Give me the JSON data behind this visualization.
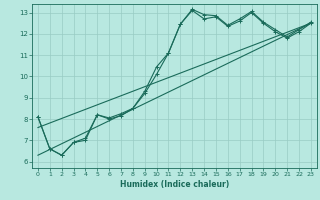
{
  "xlabel": "Humidex (Indice chaleur)",
  "ylabel": "",
  "bg_color": "#b8e8e0",
  "line_color": "#1a6b5a",
  "grid_color": "#99ccc4",
  "xlim": [
    -0.5,
    23.5
  ],
  "ylim": [
    5.7,
    13.4
  ],
  "xticks": [
    0,
    1,
    2,
    3,
    4,
    5,
    6,
    7,
    8,
    9,
    10,
    11,
    12,
    13,
    14,
    15,
    16,
    17,
    18,
    19,
    20,
    21,
    22,
    23
  ],
  "yticks": [
    6,
    7,
    8,
    9,
    10,
    11,
    12,
    13
  ],
  "line1_x": [
    0,
    1,
    2,
    3,
    4,
    5,
    6,
    7,
    8,
    9,
    10,
    11,
    12,
    13,
    14,
    15,
    16,
    17,
    18,
    19,
    20,
    21,
    22,
    23
  ],
  "line1_y": [
    8.1,
    6.6,
    6.3,
    6.9,
    7.0,
    8.2,
    8.0,
    8.15,
    8.5,
    9.2,
    10.1,
    11.1,
    12.45,
    13.1,
    12.7,
    12.8,
    12.35,
    12.6,
    13.0,
    12.5,
    12.1,
    11.8,
    12.1,
    12.5
  ],
  "line2_x": [
    0,
    1,
    2,
    3,
    4,
    5,
    6,
    7,
    8,
    9,
    10,
    11,
    12,
    13,
    14,
    15,
    16,
    17,
    18,
    19,
    20,
    21,
    22,
    23
  ],
  "line2_y": [
    8.1,
    6.6,
    6.3,
    6.9,
    7.1,
    8.2,
    8.05,
    8.25,
    8.5,
    9.3,
    10.45,
    11.1,
    12.45,
    13.15,
    12.9,
    12.85,
    12.4,
    12.7,
    13.05,
    12.55,
    12.2,
    11.85,
    12.2,
    12.55
  ],
  "line3_x": [
    0,
    23
  ],
  "line3_y": [
    6.3,
    12.5
  ],
  "line4_x": [
    0,
    23
  ],
  "line4_y": [
    7.6,
    12.5
  ]
}
